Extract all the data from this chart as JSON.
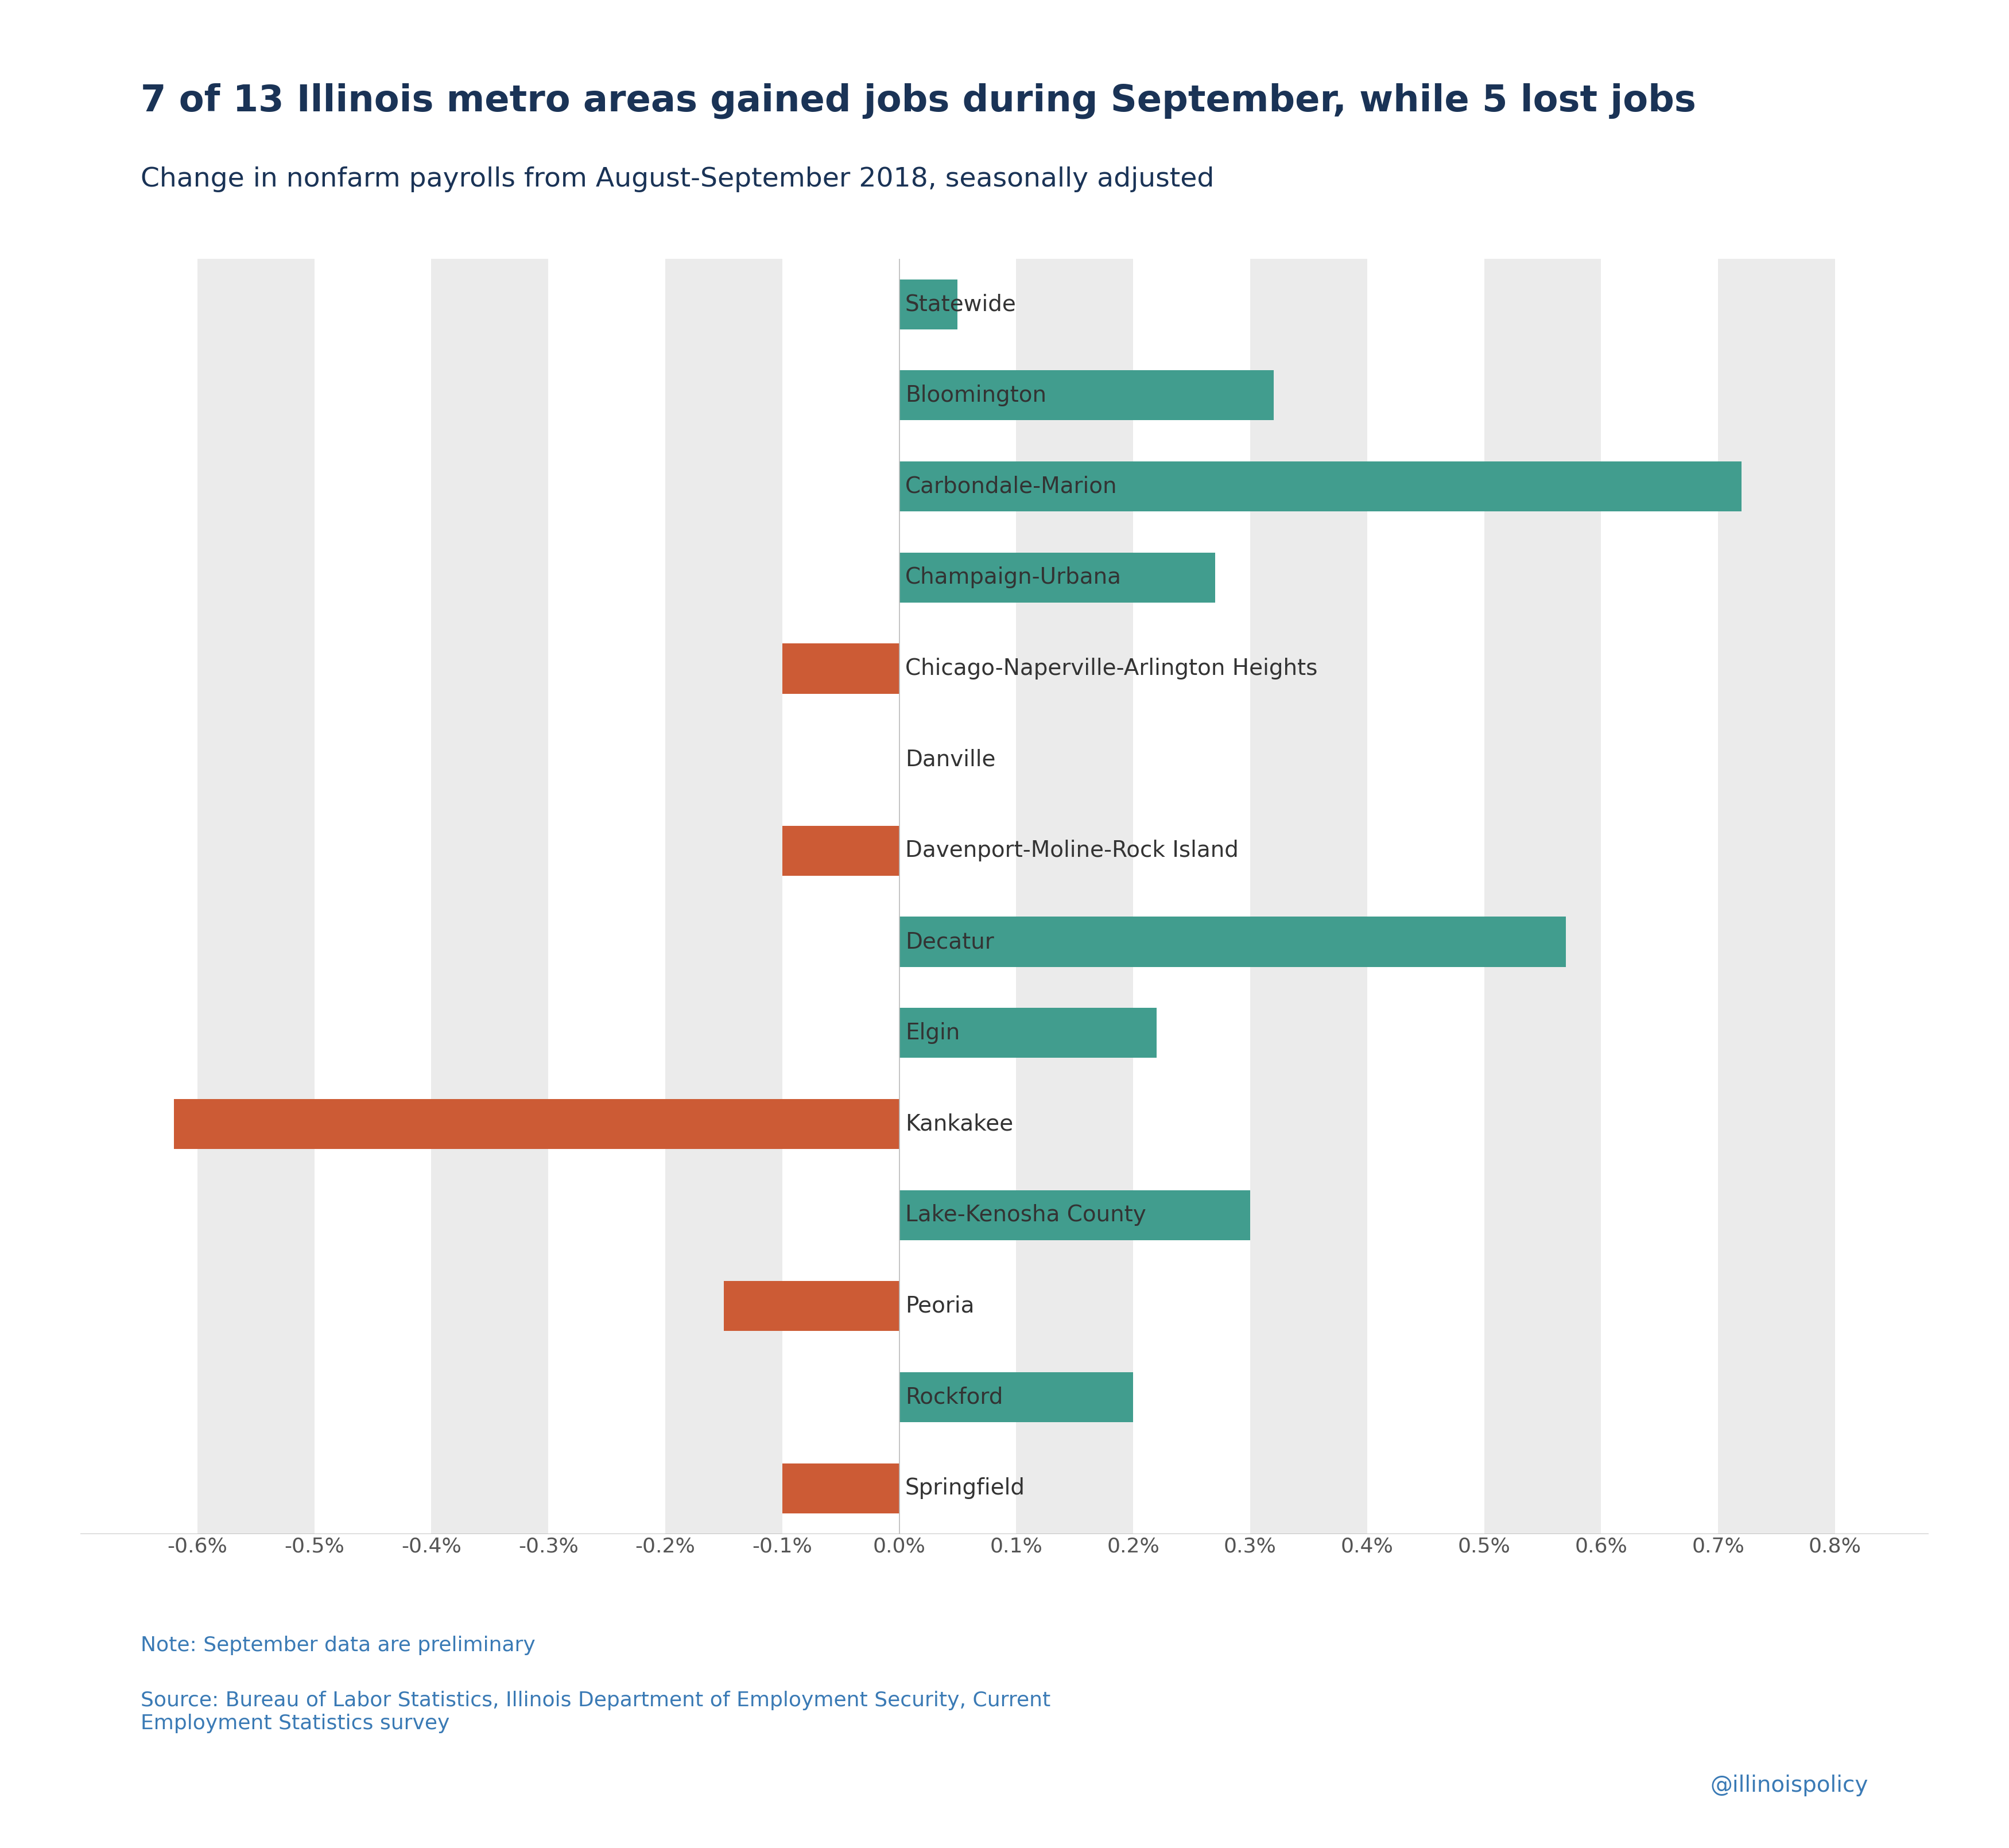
{
  "title": "7 of 13 Illinois metro areas gained jobs during September, while 5 lost jobs",
  "subtitle": "Change in nonfarm payrolls from August-September 2018, seasonally adjusted",
  "note": "Note: September data are preliminary",
  "source": "Source: Bureau of Labor Statistics, Illinois Department of Employment Security, Current\nEmployment Statistics survey",
  "handle": "@illinoispolicy",
  "categories": [
    "Statewide",
    "Bloomington",
    "Carbondale-Marion",
    "Champaign-Urbana",
    "Chicago-Naperville-Arlington Heights",
    "Danville",
    "Davenport-Moline-Rock Island",
    "Decatur",
    "Elgin",
    "Kankakee",
    "Lake-Kenosha County",
    "Peoria",
    "Rockford",
    "Springfield"
  ],
  "values": [
    0.05,
    0.32,
    0.72,
    0.27,
    -0.1,
    0.0,
    -0.1,
    0.57,
    0.22,
    -0.62,
    0.3,
    -0.15,
    0.2,
    -0.1
  ],
  "teal_color": "#419d8e",
  "orange_color": "#cc5b35",
  "title_color": "#1a3356",
  "subtitle_color": "#1a3356",
  "note_color": "#3a7ab5",
  "source_color": "#3a7ab5",
  "handle_color": "#3a7ab5",
  "background_color": "#ffffff",
  "band_color": "#ebebeb",
  "xlim": [
    -0.7,
    0.88
  ],
  "xtick_vals": [
    -0.6,
    -0.5,
    -0.4,
    -0.3,
    -0.2,
    -0.1,
    0.0,
    0.1,
    0.2,
    0.3,
    0.4,
    0.5,
    0.6,
    0.7,
    0.8
  ],
  "xtick_labels": [
    "-0.6%",
    "-0.5%",
    "-0.4%",
    "-0.3%",
    "-0.2%",
    "-0.1%",
    "0.0%",
    "0.1%",
    "0.2%",
    "0.3%",
    "0.4%",
    "0.5%",
    "0.6%",
    "0.7%",
    "0.8%"
  ],
  "title_fontsize": 46,
  "subtitle_fontsize": 34,
  "label_fontsize": 28,
  "tick_fontsize": 26,
  "note_fontsize": 26,
  "handle_fontsize": 28
}
